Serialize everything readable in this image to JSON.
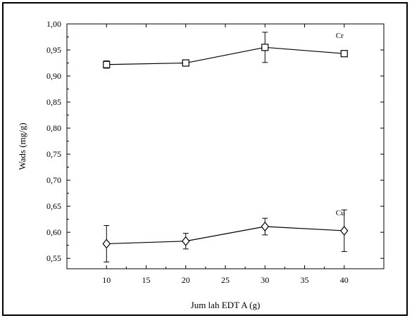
{
  "chart_data": {
    "type": "line",
    "xlabel": "Jum lah EDT A (g)",
    "ylabel": "Wads (mg/g)",
    "xlim": [
      5,
      45
    ],
    "ylim": [
      0.53,
      1.0
    ],
    "x_ticks": [
      10,
      15,
      20,
      25,
      30,
      35,
      40
    ],
    "y_ticks": [
      "0,55",
      "0,60",
      "0,65",
      "0,70",
      "0,75",
      "0,80",
      "0,85",
      "0,90",
      "0,95",
      "1,00"
    ],
    "y_tick_values": [
      0.55,
      0.6,
      0.65,
      0.7,
      0.75,
      0.8,
      0.85,
      0.9,
      0.95,
      1.0
    ],
    "grid": false,
    "series": [
      {
        "name": "Cr",
        "marker": "square",
        "x": [
          10,
          20,
          30,
          40
        ],
        "y": [
          0.922,
          0.925,
          0.955,
          0.943
        ],
        "error": [
          0.007,
          0.004,
          0.029,
          0.004
        ]
      },
      {
        "name": "Cu",
        "marker": "diamond",
        "x": [
          10,
          20,
          30,
          40
        ],
        "y": [
          0.578,
          0.583,
          0.611,
          0.603
        ],
        "error": [
          0.035,
          0.015,
          0.016,
          0.04
        ]
      }
    ]
  }
}
